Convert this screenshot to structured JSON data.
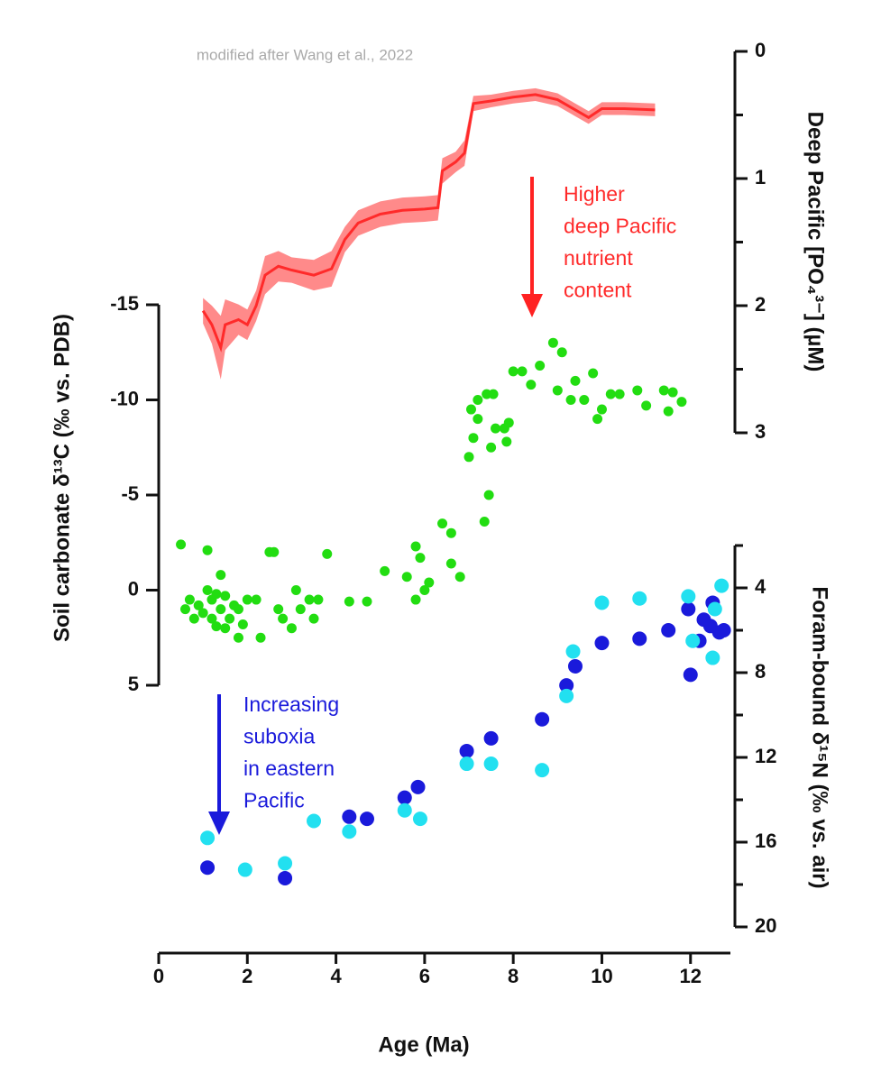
{
  "note": "modified after Wang et al., 2022",
  "x_axis": {
    "label": "Age (Ma)",
    "xlim": [
      0,
      12.9
    ],
    "xticks": [
      0,
      2,
      4,
      6,
      8,
      10,
      12
    ]
  },
  "chart_data": [
    {
      "type": "band-line",
      "ylabel": "Deep Pacific [PO₄³⁻] (µM)",
      "ylim": [
        3,
        0
      ],
      "yticks": [
        0,
        1,
        2,
        3
      ],
      "yminorticks": [
        0.5,
        1.5,
        2.5
      ],
      "annotation": [
        "Higher",
        "deep Pacific",
        "nutrient",
        "content"
      ],
      "series": [
        {
          "color": "#ff2a2a",
          "x": [
            1.0,
            1.2,
            1.4,
            1.5,
            1.8,
            2.0,
            2.2,
            2.4,
            2.7,
            3.0,
            3.5,
            3.9,
            4.2,
            4.5,
            5.0,
            5.5,
            6.0,
            6.3,
            6.4,
            6.7,
            6.9,
            7.1,
            7.5,
            8.0,
            8.5,
            9.0,
            9.5,
            9.7,
            10.0,
            10.5,
            11.2
          ],
          "values": [
            2.04,
            2.15,
            2.33,
            2.15,
            2.11,
            2.15,
            2.0,
            1.76,
            1.69,
            1.72,
            1.76,
            1.71,
            1.48,
            1.35,
            1.28,
            1.25,
            1.24,
            1.23,
            0.94,
            0.87,
            0.8,
            0.41,
            0.39,
            0.36,
            0.34,
            0.38,
            0.48,
            0.52,
            0.45,
            0.45,
            0.46
          ],
          "errors": [
            0.1,
            0.15,
            0.25,
            0.2,
            0.12,
            0.12,
            0.12,
            0.15,
            0.12,
            0.1,
            0.12,
            0.14,
            0.1,
            0.1,
            0.1,
            0.1,
            0.1,
            0.1,
            0.1,
            0.08,
            0.1,
            0.06,
            0.05,
            0.05,
            0.05,
            0.05,
            0.05,
            0.05,
            0.05,
            0.05,
            0.05
          ]
        }
      ]
    },
    {
      "type": "scatter",
      "ylabel": "Soil carbonate δ¹³C (‰ vs. PDB)",
      "ylim": [
        5,
        -15
      ],
      "yticks": [
        -15,
        -10,
        -5,
        0,
        5
      ],
      "series": [
        {
          "color": "#22dd11",
          "x": [
            0.5,
            0.6,
            0.7,
            0.8,
            0.9,
            1.0,
            1.1,
            1.1,
            1.2,
            1.2,
            1.3,
            1.3,
            1.4,
            1.4,
            1.5,
            1.5,
            1.6,
            1.7,
            1.8,
            1.8,
            1.9,
            2.0,
            2.2,
            2.3,
            2.5,
            2.6,
            2.7,
            2.8,
            3.0,
            3.1,
            3.2,
            3.4,
            3.5,
            3.6,
            3.8,
            4.3,
            4.7,
            5.1,
            5.6,
            5.8,
            5.8,
            5.9,
            6.0,
            6.1,
            6.4,
            6.6,
            6.6,
            6.8,
            7.0,
            7.05,
            7.1,
            7.2,
            7.2,
            7.35,
            7.4,
            7.45,
            7.5,
            7.55,
            7.6,
            7.8,
            7.85,
            7.9,
            8.0,
            8.2,
            8.4,
            8.6,
            8.9,
            9.1,
            9.0,
            9.3,
            9.4,
            9.6,
            9.8,
            9.9,
            10.0,
            10.2,
            10.4,
            10.8,
            11.0,
            11.4,
            11.5,
            11.6,
            11.8
          ],
          "values": [
            -2.4,
            1,
            0.5,
            1.5,
            0.8,
            1.2,
            -2.1,
            0,
            0.5,
            1.5,
            1.9,
            0.2,
            -0.8,
            1,
            0.3,
            2,
            1.5,
            0.8,
            2.5,
            1,
            1.8,
            0.5,
            0.5,
            2.5,
            -2,
            -2,
            1,
            1.5,
            2,
            0,
            1,
            0.5,
            1.5,
            0.5,
            -1.9,
            0.6,
            0.6,
            -1,
            -0.7,
            -2.3,
            0.5,
            -1.7,
            0,
            -0.4,
            -3.5,
            -1.4,
            -3,
            -0.7,
            -7,
            -9.5,
            -8,
            -9,
            -10,
            -3.6,
            -10.3,
            -5,
            -7.5,
            -10.3,
            -8.5,
            -8.5,
            -7.8,
            -8.8,
            -11.5,
            -11.5,
            -10.8,
            -11.8,
            -13,
            -12.5,
            -10.5,
            -10,
            -11,
            -10,
            -11.4,
            -9,
            -9.5,
            -10.3,
            -10.3,
            -10.5,
            -9.7,
            -10.5,
            -9.4,
            -10.4,
            -9.9
          ]
        }
      ]
    },
    {
      "type": "scatter",
      "ylabel": "Foram-bound δ¹⁵N (‰ vs. air)",
      "ylim": [
        20,
        2
      ],
      "yticks": [
        4,
        8,
        12,
        16,
        20
      ],
      "yminorticks": [
        2,
        6,
        10,
        14,
        18
      ],
      "annotation": [
        "Increasing",
        "suboxia",
        "in eastern",
        "Pacific"
      ],
      "series": [
        {
          "color": "#1a1adb",
          "x": [
            1.1,
            2.85,
            4.3,
            4.7,
            5.55,
            5.85,
            6.95,
            7.5,
            8.65,
            9.2,
            9.4,
            10.0,
            10.85,
            11.5,
            11.95,
            12.0,
            12.2,
            12.3,
            12.45,
            12.5,
            12.65,
            12.75
          ],
          "values": [
            17.2,
            17.7,
            14.8,
            14.9,
            13.9,
            13.4,
            11.7,
            11.1,
            10.2,
            8.6,
            7.7,
            6.6,
            6.4,
            6,
            5,
            8.1,
            6.5,
            5.5,
            5.8,
            4.7,
            6.1,
            6
          ]
        },
        {
          "color": "#22e0f0",
          "x": [
            1.1,
            1.95,
            2.85,
            3.5,
            4.3,
            5.55,
            5.9,
            6.95,
            7.5,
            8.65,
            9.2,
            9.35,
            10.0,
            10.85,
            11.95,
            12.05,
            12.5,
            12.55,
            12.7
          ],
          "values": [
            15.8,
            17.3,
            17,
            15,
            15.5,
            14.5,
            14.9,
            12.3,
            12.3,
            12.6,
            9.1,
            7,
            4.7,
            4.5,
            4.4,
            6.5,
            7.3,
            5,
            3.9
          ]
        }
      ]
    }
  ]
}
